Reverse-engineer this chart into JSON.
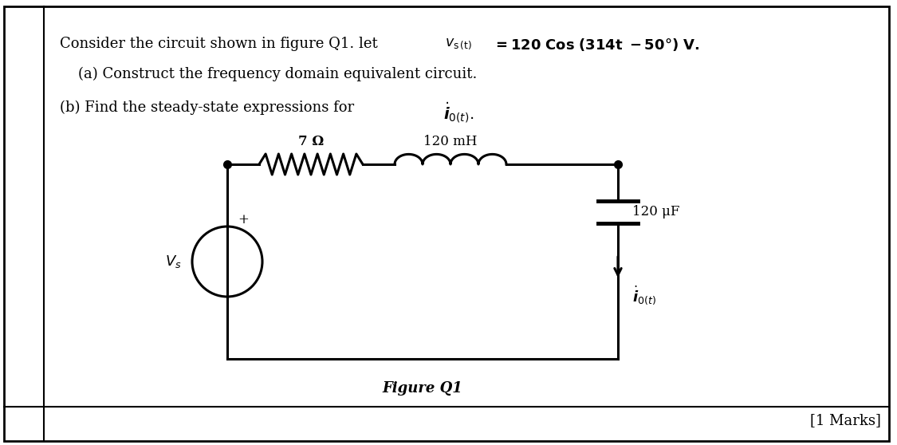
{
  "line1_plain": "Consider the circuit shown in figure Q1. let ",
  "line2": "    (a) Construct the frequency domain equivalent circuit.",
  "line3_plain": "(b) Find the steady-state expressions for ",
  "resistor_label": "7 Ω",
  "inductor_label": "120 mH",
  "capacitor_label": "120 μF",
  "figure_label": "Figure Q1",
  "marks_label": "[1 Marks]",
  "bg_color": "#ffffff",
  "line_color": "#000000",
  "text_color": "#000000",
  "border_color": "#000000"
}
